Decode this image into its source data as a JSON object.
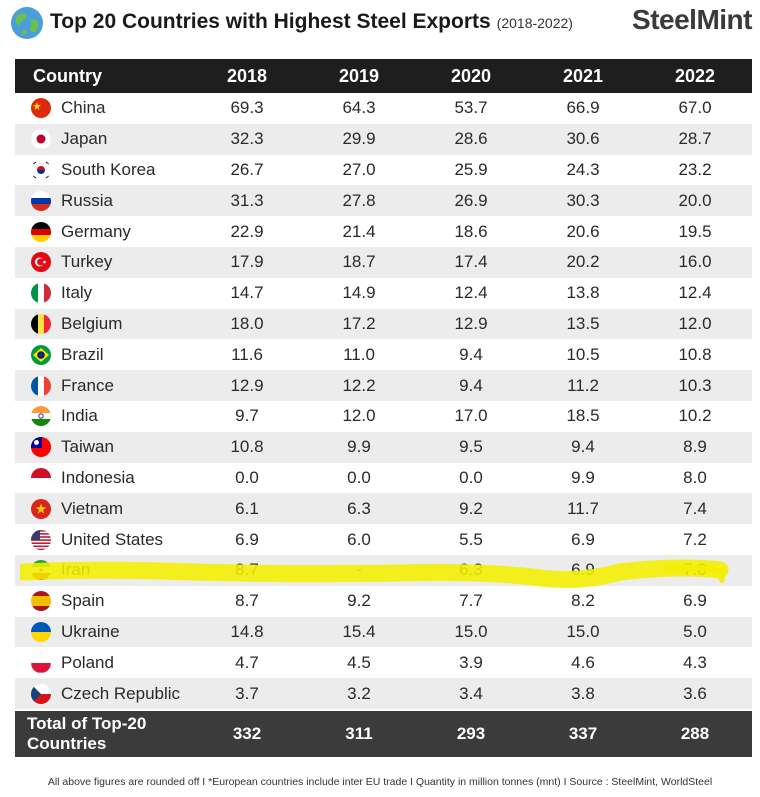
{
  "header": {
    "title": "Top 20 Countries with Highest Steel Exports",
    "period": "(2018-2022)",
    "logo_text": "SteelMint",
    "globe_icon": "globe-icon"
  },
  "chart_data": {
    "type": "table",
    "columns": [
      "Country",
      "2018",
      "2019",
      "2020",
      "2021",
      "2022"
    ],
    "rows": [
      {
        "country": "China",
        "flag": "china-flag-icon",
        "values": [
          "69.3",
          "64.3",
          "53.7",
          "66.9",
          "67.0"
        ]
      },
      {
        "country": "Japan",
        "flag": "japan-flag-icon",
        "values": [
          "32.3",
          "29.9",
          "28.6",
          "30.6",
          "28.7"
        ]
      },
      {
        "country": "South Korea",
        "flag": "south-korea-flag-icon",
        "values": [
          "26.7",
          "27.0",
          "25.9",
          "24.3",
          "23.2"
        ]
      },
      {
        "country": "Russia",
        "flag": "russia-flag-icon",
        "values": [
          "31.3",
          "27.8",
          "26.9",
          "30.3",
          "20.0"
        ]
      },
      {
        "country": "Germany",
        "flag": "germany-flag-icon",
        "values": [
          "22.9",
          "21.4",
          "18.6",
          "20.6",
          "19.5"
        ]
      },
      {
        "country": "Turkey",
        "flag": "turkey-flag-icon",
        "values": [
          "17.9",
          "18.7",
          "17.4",
          "20.2",
          "16.0"
        ]
      },
      {
        "country": "Italy",
        "flag": "italy-flag-icon",
        "values": [
          "14.7",
          "14.9",
          "12.4",
          "13.8",
          "12.4"
        ]
      },
      {
        "country": "Belgium",
        "flag": "belgium-flag-icon",
        "values": [
          "18.0",
          "17.2",
          "12.9",
          "13.5",
          "12.0"
        ]
      },
      {
        "country": "Brazil",
        "flag": "brazil-flag-icon",
        "values": [
          "11.6",
          "11.0",
          "9.4",
          "10.5",
          "10.8"
        ]
      },
      {
        "country": "France",
        "flag": "france-flag-icon",
        "values": [
          "12.9",
          "12.2",
          "9.4",
          "11.2",
          "10.3"
        ]
      },
      {
        "country": "India",
        "flag": "india-flag-icon",
        "values": [
          "9.7",
          "12.0",
          "17.0",
          "18.5",
          "10.2"
        ]
      },
      {
        "country": "Taiwan",
        "flag": "taiwan-flag-icon",
        "values": [
          "10.8",
          "9.9",
          "9.5",
          "9.4",
          "8.9"
        ]
      },
      {
        "country": "Indonesia",
        "flag": "indonesia-flag-icon",
        "values": [
          "0.0",
          "0.0",
          "0.0",
          "9.9",
          "8.0"
        ]
      },
      {
        "country": "Vietnam",
        "flag": "vietnam-flag-icon",
        "values": [
          "6.1",
          "6.3",
          "9.2",
          "11.7",
          "7.4"
        ]
      },
      {
        "country": "United States",
        "flag": "usa-flag-icon",
        "values": [
          "6.9",
          "6.0",
          "5.5",
          "6.9",
          "7.2"
        ]
      },
      {
        "country": "Iran",
        "flag": "iran-flag-icon",
        "values": [
          "8.7",
          "-",
          "6.3",
          "6.9",
          "7.0"
        ],
        "highlighted": true
      },
      {
        "country": "Spain",
        "flag": "spain-flag-icon",
        "values": [
          "8.7",
          "9.2",
          "7.7",
          "8.2",
          "6.9"
        ]
      },
      {
        "country": "Ukraine",
        "flag": "ukraine-flag-icon",
        "values": [
          "14.8",
          "15.4",
          "15.0",
          "15.0",
          "5.0"
        ]
      },
      {
        "country": "Poland",
        "flag": "poland-flag-icon",
        "values": [
          "4.7",
          "4.5",
          "3.9",
          "4.6",
          "4.3"
        ]
      },
      {
        "country": "Czech Republic",
        "flag": "czech-flag-icon",
        "values": [
          "3.7",
          "3.2",
          "3.4",
          "3.8",
          "3.6"
        ]
      }
    ],
    "total": {
      "label_line1": "Total of Top-20",
      "label_line2": "Countries",
      "values": [
        "332",
        "311",
        "293",
        "337",
        "288"
      ]
    },
    "highlight_color": "#f2ef00",
    "header_bg": "#1e1e1e",
    "total_bg": "#3b3b3b",
    "alt_row_bg": "#ececec"
  },
  "footnote": "All above figures are rounded off  I  *European countries include inter EU trade  I  Quantity in million tonnes (mnt)  I  Source : SteelMint, WorldSteel"
}
